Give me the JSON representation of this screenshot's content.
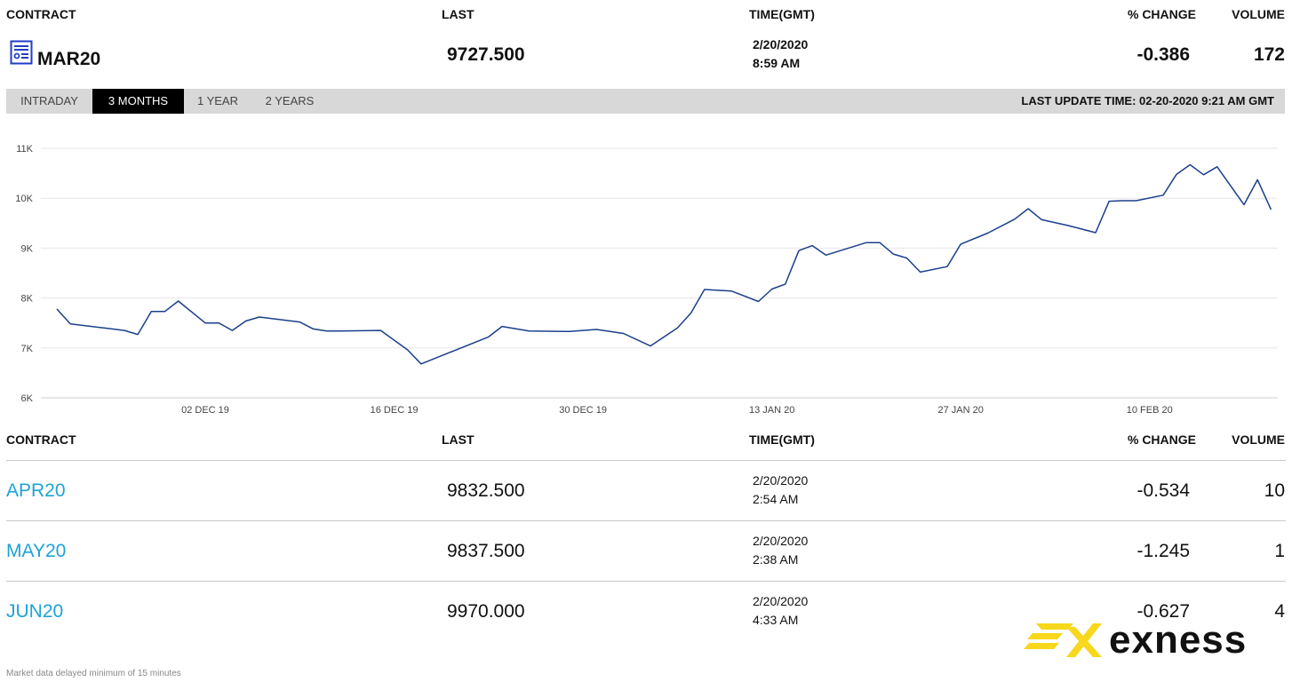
{
  "columns": {
    "contract": "CONTRACT",
    "last": "LAST",
    "time": "TIME(GMT)",
    "pct_change": "% CHANGE",
    "volume": "VOLUME"
  },
  "main_contract": {
    "icon": "report-icon",
    "name": "MAR20",
    "last": "9727.500",
    "date": "2/20/2020",
    "time": "8:59 AM",
    "pct_change": "-0.386",
    "volume": "172"
  },
  "tabs": [
    {
      "label": "INTRADAY",
      "active": false
    },
    {
      "label": "3 MONTHS",
      "active": true
    },
    {
      "label": "1 YEAR",
      "active": false
    },
    {
      "label": "2 YEARS",
      "active": false
    }
  ],
  "last_update": "LAST UPDATE TIME: 02-20-2020 9:21 AM GMT",
  "chart_data": {
    "type": "line",
    "title": "",
    "xlabel": "",
    "ylabel": "",
    "ylim": [
      6000,
      11000
    ],
    "y_ticks": [
      "6K",
      "7K",
      "8K",
      "9K",
      "10K",
      "11K"
    ],
    "y_tick_values": [
      6000,
      7000,
      8000,
      9000,
      10000,
      11000
    ],
    "x_ticks": [
      "02 DEC 19",
      "16 DEC 19",
      "30 DEC 19",
      "13 JAN 20",
      "27 JAN 20",
      "10 FEB 20"
    ],
    "x_tick_index": [
      11,
      25,
      39,
      53,
      67,
      81
    ],
    "x_range": [
      0,
      90.5
    ],
    "grid": true,
    "line_color": "#1a3f8c",
    "points_x": [
      0,
      1,
      5,
      6,
      7,
      8,
      9,
      11,
      12,
      13,
      14,
      15,
      18,
      19,
      20,
      21,
      24,
      26,
      27,
      32,
      33,
      35,
      38,
      40,
      42,
      44,
      46,
      47,
      48,
      50,
      52,
      53,
      54,
      55,
      56,
      57,
      60,
      61,
      62,
      63,
      64,
      66,
      67,
      69,
      71,
      72,
      73,
      75,
      77,
      78,
      79,
      80,
      82,
      83,
      84,
      85,
      86,
      88,
      89,
      90
    ],
    "points_y": [
      7780,
      7480,
      7350,
      7270,
      7730,
      7730,
      7940,
      7500,
      7500,
      7350,
      7540,
      7620,
      7520,
      7380,
      7340,
      7340,
      7350,
      6960,
      6680,
      7220,
      7430,
      7340,
      7330,
      7370,
      7290,
      7040,
      7400,
      7700,
      8170,
      8140,
      7930,
      8180,
      8280,
      8950,
      9050,
      8860,
      9110,
      9110,
      8880,
      8800,
      8520,
      8630,
      9080,
      9300,
      9580,
      9790,
      9570,
      9450,
      9310,
      9940,
      9950,
      9950,
      10060,
      10480,
      10670,
      10470,
      10630,
      9870,
      10370,
      9770
    ]
  },
  "rows": [
    {
      "name": "APR20",
      "last": "9832.500",
      "date": "2/20/2020",
      "time": "2:54 AM",
      "pct_change": "-0.534",
      "volume": "10"
    },
    {
      "name": "MAY20",
      "last": "9837.500",
      "date": "2/20/2020",
      "time": "2:38 AM",
      "pct_change": "-1.245",
      "volume": "1"
    },
    {
      "name": "JUN20",
      "last": "9970.000",
      "date": "2/20/2020",
      "time": "4:33 AM",
      "pct_change": "-0.627",
      "volume": "4"
    }
  ],
  "footnote": "Market data delayed minimum of 15 minutes",
  "brand": {
    "name": "exness",
    "color": "#f7d81c"
  }
}
